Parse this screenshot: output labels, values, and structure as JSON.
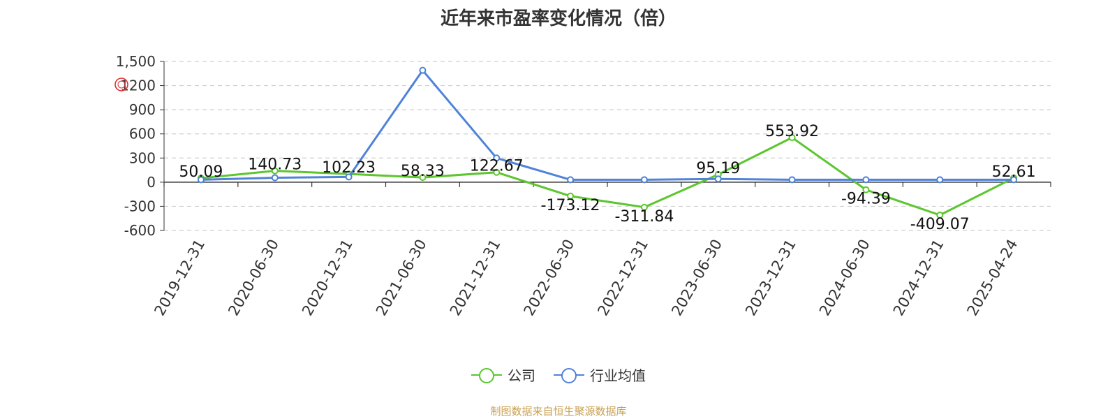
{
  "title": "近年来市盈率变化情况（倍）",
  "source": "制图数据来自恒生聚源数据库",
  "colors": {
    "company": "#5cc62e",
    "industry": "#4f82d9",
    "watermark": "#e03030"
  },
  "legend": {
    "company": "公司",
    "industry": "行业均值"
  },
  "chart_data": {
    "type": "line",
    "title": "近年来市盈率变化情况（倍）",
    "xlabel": "",
    "ylabel": "",
    "ylim": [
      -600,
      1500
    ],
    "yticks": [
      -600,
      -300,
      0,
      300,
      600,
      900,
      1200,
      1500
    ],
    "ytick_labels": [
      "-600",
      "-300",
      "0",
      "300",
      "600",
      "900",
      "1200",
      "1,500"
    ],
    "grid": true,
    "legend_position": "bottom",
    "categories": [
      "2019-12-31",
      "2020-06-30",
      "2020-12-31",
      "2021-06-30",
      "2021-12-31",
      "2022-06-30",
      "2022-12-31",
      "2023-06-30",
      "2023-12-31",
      "2024-06-30",
      "2024-12-31",
      "2025-04-24"
    ],
    "series": [
      {
        "name": "公司",
        "values": [
          50.09,
          140.73,
          102.23,
          58.33,
          122.67,
          -173.12,
          -311.84,
          95.19,
          553.92,
          -94.39,
          -409.07,
          52.61
        ],
        "labels": [
          "50.09",
          "140.73",
          "102.23",
          "58.33",
          "122.67",
          "-173.12",
          "-311.84",
          "95.19",
          "553.92",
          "-94.39",
          "-409.07",
          "52.61"
        ]
      },
      {
        "name": "行业均值",
        "values": [
          30,
          55,
          65,
          1390,
          300,
          30,
          30,
          40,
          30,
          30,
          30,
          30
        ]
      }
    ]
  }
}
